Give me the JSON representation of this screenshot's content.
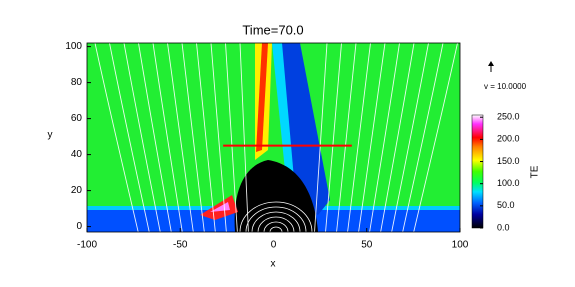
{
  "chart_data": {
    "type": "heatmap",
    "title": "Time=70.0",
    "x_label": "x",
    "y_label": "y",
    "xlim": [
      -100,
      100
    ],
    "ylim": [
      -3,
      102
    ],
    "xticks": [
      -100,
      -50,
      0,
      50,
      100
    ],
    "yticks": [
      0,
      20,
      40,
      60,
      80,
      100
    ],
    "colorbar": {
      "label": "TE",
      "lim": [
        0,
        255
      ],
      "ticks": [
        {
          "value": 0,
          "label": "0.0"
        },
        {
          "value": 50,
          "label": "50.0"
        },
        {
          "value": 100,
          "label": "100.0"
        },
        {
          "value": 150,
          "label": "150.0"
        },
        {
          "value": 200,
          "label": "200.0"
        },
        {
          "value": 250,
          "label": "250.0"
        }
      ]
    },
    "vector_legend": "v = 10.0000",
    "cut_line": {
      "x": [
        -27,
        42
      ],
      "y": [
        45,
        45
      ],
      "color": "#ff0000"
    }
  }
}
